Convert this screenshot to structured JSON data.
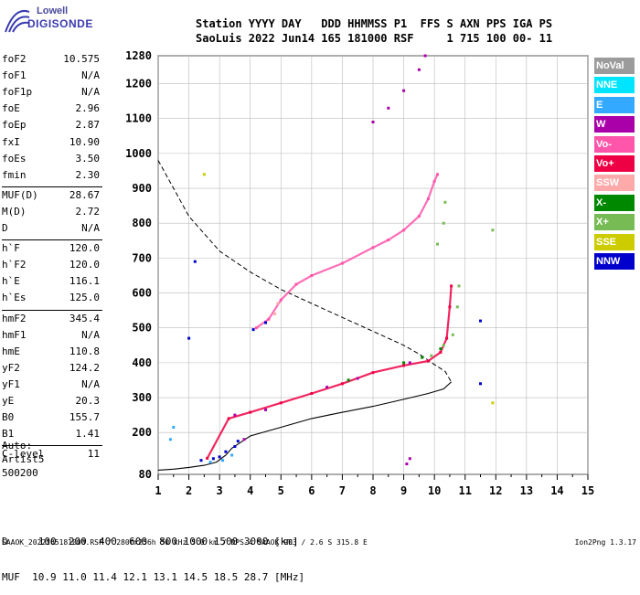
{
  "logo": {
    "line1": "Lowell",
    "line2": "DIGISONDE"
  },
  "header": {
    "line1": "Station YYYY DAY   DDD HHMMSS P1  FFS S AXN PPS IGA PS",
    "line2": "SaoLuis 2022 Jun14 165 181000 RSF     1 715 100 00- 11"
  },
  "params": {
    "group1": [
      {
        "k": "foF2",
        "v": "10.575"
      },
      {
        "k": "foF1",
        "v": "N/A"
      },
      {
        "k": "foF1p",
        "v": "N/A"
      },
      {
        "k": "foE",
        "v": "2.96"
      },
      {
        "k": "foEp",
        "v": "2.87"
      },
      {
        "k": "fxI",
        "v": "10.90"
      },
      {
        "k": "foEs",
        "v": "3.50"
      },
      {
        "k": "fmin",
        "v": "2.30"
      }
    ],
    "group2": [
      {
        "k": "MUF(D)",
        "v": "28.67"
      },
      {
        "k": "M(D)",
        "v": "2.72"
      },
      {
        "k": "D",
        "v": "N/A"
      }
    ],
    "group3": [
      {
        "k": "h`F",
        "v": "120.0"
      },
      {
        "k": "h`F2",
        "v": "120.0"
      },
      {
        "k": "h`E",
        "v": "116.1"
      },
      {
        "k": "h`Es",
        "v": "125.0"
      }
    ],
    "group4": [
      {
        "k": "hmF2",
        "v": "345.4"
      },
      {
        "k": "hmF1",
        "v": "N/A"
      },
      {
        "k": "hmE",
        "v": "110.8"
      },
      {
        "k": "yF2",
        "v": "124.2"
      },
      {
        "k": "yF1",
        "v": "N/A"
      },
      {
        "k": "yE",
        "v": "20.3"
      },
      {
        "k": "B0",
        "v": "155.7"
      },
      {
        "k": "B1",
        "v": "1.41"
      }
    ],
    "group5": [
      {
        "k": "C-level",
        "v": "11"
      }
    ]
  },
  "auto": {
    "line1": "Auto:",
    "line2": "Artist5",
    "line3": "500200"
  },
  "legend": [
    {
      "label": "NoVal",
      "color": "#9b9b9b"
    },
    {
      "label": "NNE",
      "color": "#00e5ff"
    },
    {
      "label": "E",
      "color": "#33aaff"
    },
    {
      "label": "W",
      "color": "#aa00aa"
    },
    {
      "label": "Vo-",
      "color": "#ff55aa"
    },
    {
      "label": "Vo+",
      "color": "#ee0044"
    },
    {
      "label": "SSW",
      "color": "#ffaaaa"
    },
    {
      "label": "X-",
      "color": "#008800"
    },
    {
      "label": "X+",
      "color": "#77bb55"
    },
    {
      "label": "SSE",
      "color": "#cccc00"
    },
    {
      "label": "NNW",
      "color": "#0000cc"
    }
  ],
  "bottom": {
    "d_row": "D     100  200  400  600  800 1000 1500 3000 [km]",
    "muf_row": "MUF  10.9 11.0 11.4 12.1 13.1 14.5 18.5 28.7 [MHz]"
  },
  "footer": {
    "left": "SAAOK_2022165181000.RSF / 280fx256h 50 kHz 5.0 km / DPS-4 SAAOK 903 / 2.6 S 315.8 E",
    "right": "Ion2Png 1.3.17"
  },
  "chart_data": {
    "type": "scatter",
    "xlim": [
      1,
      15
    ],
    "ylim": [
      80,
      1280
    ],
    "x_ticks": [
      1,
      2,
      3,
      4,
      5,
      6,
      7,
      8,
      9,
      10,
      11,
      12,
      13,
      14,
      15
    ],
    "y_ticks": [
      80,
      200,
      300,
      400,
      500,
      600,
      700,
      800,
      900,
      1000,
      1100,
      1200,
      1280
    ],
    "grid": true,
    "series": [
      {
        "name": "Vo+",
        "color": "#ee0044",
        "points": [
          [
            2.6,
            126
          ],
          [
            3.3,
            240
          ],
          [
            4,
            258
          ],
          [
            5,
            285
          ],
          [
            6,
            312
          ],
          [
            7,
            340
          ],
          [
            8,
            372
          ],
          [
            9,
            392
          ],
          [
            9.8,
            405
          ],
          [
            10.2,
            430
          ],
          [
            10.4,
            470
          ],
          [
            10.5,
            560
          ],
          [
            10.55,
            620
          ]
        ]
      },
      {
        "name": "Vo-",
        "color": "#ff55aa",
        "points": [
          [
            4.2,
            500
          ],
          [
            4.6,
            525
          ],
          [
            5,
            580
          ],
          [
            5.5,
            625
          ],
          [
            6,
            650
          ],
          [
            7,
            685
          ],
          [
            8,
            730
          ],
          [
            8.5,
            752
          ],
          [
            9,
            780
          ],
          [
            9.5,
            820
          ],
          [
            9.8,
            870
          ],
          [
            10,
            920
          ],
          [
            10.1,
            940
          ]
        ]
      },
      {
        "name": "W",
        "color": "#aa00aa",
        "points": [
          [
            3.8,
            180
          ],
          [
            3.5,
            250
          ],
          [
            4.5,
            265
          ],
          [
            6.5,
            330
          ],
          [
            7.5,
            355
          ],
          [
            9.2,
            400
          ],
          [
            8,
            1090
          ],
          [
            8.5,
            1130
          ],
          [
            9,
            1180
          ],
          [
            9.5,
            1240
          ],
          [
            9.7,
            1280
          ],
          [
            9.1,
            110
          ],
          [
            9.2,
            125
          ]
        ]
      },
      {
        "name": "X+",
        "color": "#77bb55",
        "points": [
          [
            9.9,
            420
          ],
          [
            10.3,
            450
          ],
          [
            10.6,
            480
          ],
          [
            10.75,
            560
          ],
          [
            10.8,
            620
          ],
          [
            10.1,
            740
          ],
          [
            10.3,
            800
          ],
          [
            10.35,
            860
          ],
          [
            11.9,
            780
          ]
        ]
      },
      {
        "name": "X-",
        "color": "#008800",
        "points": [
          [
            9,
            400
          ],
          [
            9.6,
            415
          ],
          [
            10.2,
            440
          ],
          [
            7.2,
            350
          ]
        ]
      },
      {
        "name": "NNW",
        "color": "#0000cc",
        "points": [
          [
            2.4,
            120
          ],
          [
            2.8,
            125
          ],
          [
            3,
            130
          ],
          [
            3.2,
            145
          ],
          [
            3.5,
            160
          ],
          [
            3.6,
            175
          ],
          [
            2.2,
            690
          ],
          [
            2,
            470
          ],
          [
            4.1,
            495
          ],
          [
            4.5,
            515
          ],
          [
            11.5,
            520
          ],
          [
            11.5,
            340
          ]
        ]
      },
      {
        "name": "E",
        "color": "#33aaff",
        "points": [
          [
            2.7,
            115
          ],
          [
            3.1,
            120
          ],
          [
            3.4,
            135
          ],
          [
            1.4,
            180
          ],
          [
            1.5,
            215
          ]
        ]
      },
      {
        "name": "SSE",
        "color": "#cccc00",
        "points": [
          [
            2.5,
            940
          ],
          [
            11.9,
            285
          ]
        ]
      },
      {
        "name": "SSW",
        "color": "#ffaaaa",
        "points": [
          [
            4.8,
            540
          ],
          [
            4.9,
            570
          ]
        ]
      }
    ],
    "profile": [
      [
        1.0,
        92
      ],
      [
        1.5,
        95
      ],
      [
        2.0,
        100
      ],
      [
        2.5,
        106
      ],
      [
        2.9,
        115
      ],
      [
        3.2,
        135
      ],
      [
        3.4,
        155
      ],
      [
        4,
        190
      ],
      [
        5,
        215
      ],
      [
        6,
        240
      ],
      [
        7,
        258
      ],
      [
        8,
        275
      ],
      [
        9,
        295
      ],
      [
        9.8,
        312
      ],
      [
        10.3,
        325
      ],
      [
        10.55,
        345
      ]
    ],
    "muf_curve": [
      [
        1.0,
        980
      ],
      [
        1.5,
        900
      ],
      [
        2,
        820
      ],
      [
        3,
        720
      ],
      [
        4,
        660
      ],
      [
        5,
        610
      ],
      [
        6,
        570
      ],
      [
        7,
        530
      ],
      [
        8,
        490
      ],
      [
        9,
        450
      ],
      [
        9.5,
        425
      ],
      [
        10,
        395
      ],
      [
        10.35,
        375
      ],
      [
        10.55,
        345
      ]
    ]
  }
}
